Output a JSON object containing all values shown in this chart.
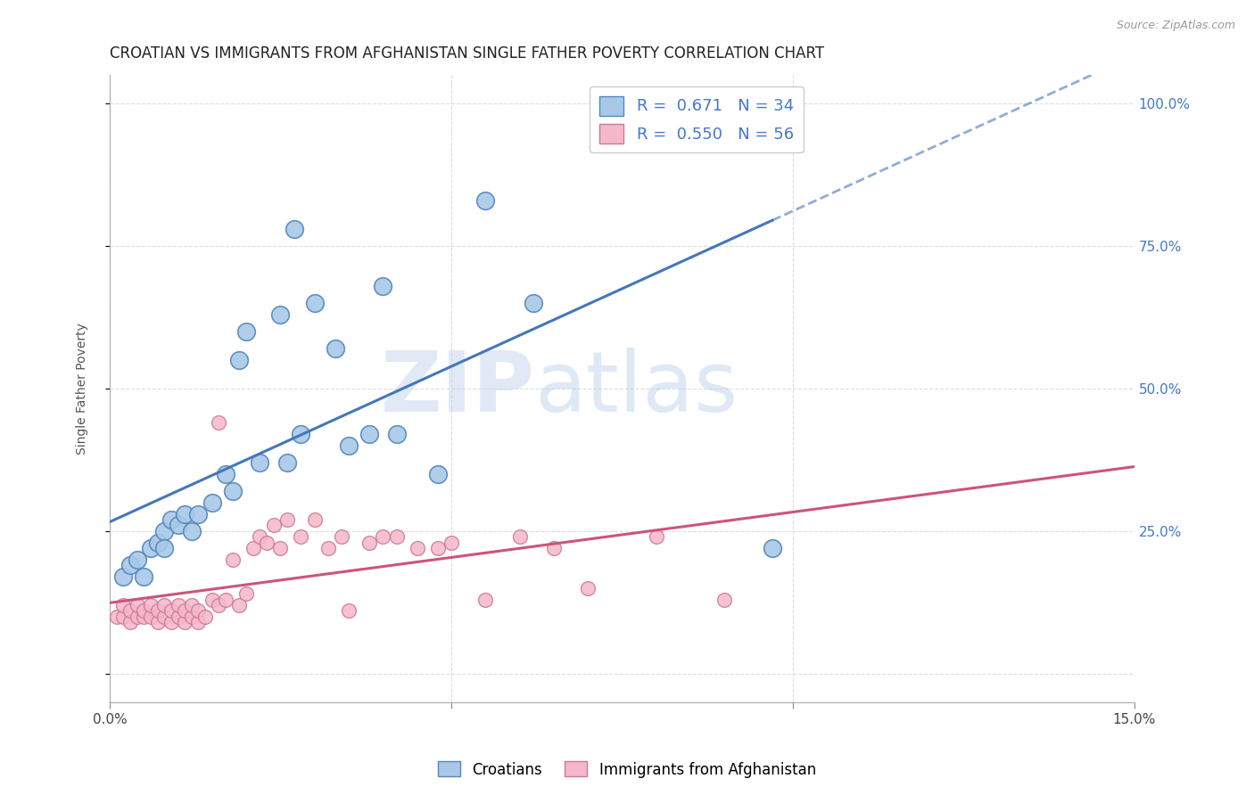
{
  "title": "CROATIAN VS IMMIGRANTS FROM AFGHANISTAN SINGLE FATHER POVERTY CORRELATION CHART",
  "source": "Source: ZipAtlas.com",
  "ylabel": "Single Father Poverty",
  "xlim": [
    0.0,
    0.15
  ],
  "ylim": [
    -0.05,
    1.05
  ],
  "ytick_labels_right": [
    "",
    "25.0%",
    "50.0%",
    "75.0%",
    "100.0%"
  ],
  "ytick_positions_right": [
    0.0,
    0.25,
    0.5,
    0.75,
    1.0
  ],
  "background_color": "#ffffff",
  "watermark_zip": "ZIP",
  "watermark_atlas": "atlas",
  "blue_color": "#a8c8e8",
  "blue_edge_color": "#5588bb",
  "blue_line_color": "#4477bb",
  "pink_color": "#f5b8c8",
  "pink_edge_color": "#cc7799",
  "pink_line_color": "#cc5577",
  "R_blue": 0.671,
  "N_blue": 34,
  "R_pink": 0.55,
  "N_pink": 56,
  "legend_label_blue": "Croatians",
  "legend_label_pink": "Immigrants from Afghanistan",
  "blue_scatter_x": [
    0.002,
    0.003,
    0.004,
    0.005,
    0.006,
    0.007,
    0.008,
    0.008,
    0.009,
    0.01,
    0.011,
    0.012,
    0.013,
    0.015,
    0.017,
    0.018,
    0.019,
    0.02,
    0.022,
    0.025,
    0.026,
    0.027,
    0.028,
    0.03,
    0.033,
    0.035,
    0.038,
    0.04,
    0.042,
    0.048,
    0.055,
    0.062,
    0.09,
    0.097
  ],
  "blue_scatter_y": [
    0.17,
    0.19,
    0.2,
    0.17,
    0.22,
    0.23,
    0.25,
    0.22,
    0.27,
    0.26,
    0.28,
    0.25,
    0.28,
    0.3,
    0.35,
    0.32,
    0.55,
    0.6,
    0.37,
    0.63,
    0.37,
    0.78,
    0.42,
    0.65,
    0.57,
    0.4,
    0.42,
    0.68,
    0.42,
    0.35,
    0.83,
    0.65,
    1.0,
    0.22
  ],
  "pink_scatter_x": [
    0.001,
    0.002,
    0.002,
    0.003,
    0.003,
    0.004,
    0.004,
    0.005,
    0.005,
    0.006,
    0.006,
    0.007,
    0.007,
    0.008,
    0.008,
    0.009,
    0.009,
    0.01,
    0.01,
    0.011,
    0.011,
    0.012,
    0.012,
    0.013,
    0.013,
    0.014,
    0.015,
    0.016,
    0.016,
    0.017,
    0.018,
    0.019,
    0.02,
    0.021,
    0.022,
    0.023,
    0.024,
    0.025,
    0.026,
    0.028,
    0.03,
    0.032,
    0.034,
    0.035,
    0.038,
    0.04,
    0.042,
    0.045,
    0.048,
    0.05,
    0.055,
    0.06,
    0.065,
    0.07,
    0.08,
    0.09
  ],
  "pink_scatter_y": [
    0.1,
    0.1,
    0.12,
    0.09,
    0.11,
    0.1,
    0.12,
    0.1,
    0.11,
    0.1,
    0.12,
    0.09,
    0.11,
    0.1,
    0.12,
    0.09,
    0.11,
    0.1,
    0.12,
    0.09,
    0.11,
    0.1,
    0.12,
    0.09,
    0.11,
    0.1,
    0.13,
    0.12,
    0.44,
    0.13,
    0.2,
    0.12,
    0.14,
    0.22,
    0.24,
    0.23,
    0.26,
    0.22,
    0.27,
    0.24,
    0.27,
    0.22,
    0.24,
    0.11,
    0.23,
    0.24,
    0.24,
    0.22,
    0.22,
    0.23,
    0.13,
    0.24,
    0.22,
    0.15,
    0.24,
    0.13
  ],
  "grid_color": "#dddddd",
  "title_fontsize": 12,
  "axis_label_fontsize": 10,
  "tick_fontsize": 11,
  "legend_fontsize": 13
}
